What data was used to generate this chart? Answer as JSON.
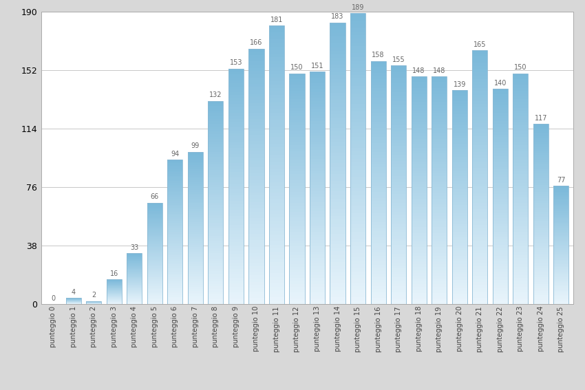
{
  "categories": [
    "punteggio 0",
    "punteggio 1",
    "punteggio 2",
    "punteggio 3",
    "punteggio 4",
    "punteggio 5",
    "punteggio 6",
    "punteggio 7",
    "punteggio 8",
    "punteggio 9",
    "punteggio 10",
    "punteggio 11",
    "punteggio 12",
    "punteggio 13",
    "punteggio 14",
    "punteggio 15",
    "punteggio 16",
    "punteggio 17",
    "punteggio 18",
    "punteggio 19",
    "punteggio 20",
    "punteggio 21",
    "punteggio 22",
    "punteggio 23",
    "punteggio 24",
    "punteggio 25"
  ],
  "values": [
    0,
    4,
    2,
    16,
    33,
    66,
    94,
    99,
    132,
    153,
    166,
    181,
    150,
    151,
    183,
    189,
    158,
    155,
    148,
    148,
    139,
    165,
    140,
    150,
    117,
    77
  ],
  "bar_color_top": "#7ab8d9",
  "bar_color_bottom": "#e8f4fb",
  "bar_edge_color": "#8ab9d4",
  "outer_bg": "#d8d8d8",
  "plot_bg_color": "#ffffff",
  "ylim": [
    0,
    190
  ],
  "yticks": [
    0,
    38,
    76,
    114,
    152,
    190
  ],
  "grid_color": "#c8c8c8",
  "label_fontsize": 7.2,
  "value_fontsize": 7.0,
  "value_color": "#666666",
  "ytick_fontsize": 9.0,
  "bar_width": 0.75
}
